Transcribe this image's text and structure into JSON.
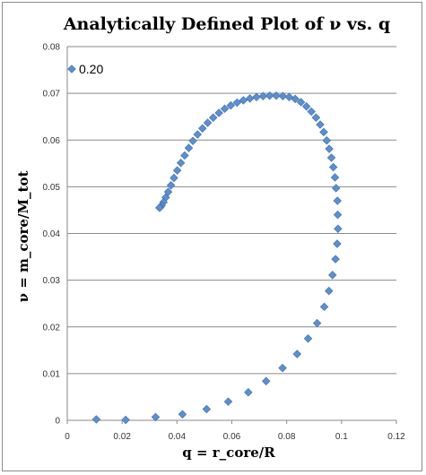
{
  "chart_data": {
    "type": "scatter",
    "title": "Analytically Defined Plot of  ν vs. q",
    "xlabel": "q = r_core/R",
    "ylabel": "ν = m_core/M_tot",
    "xlim": [
      0,
      0.12
    ],
    "ylim": [
      0,
      0.08
    ],
    "xticks": [
      "0",
      "0.02",
      "0.04",
      "0.06",
      "0.08",
      "0.1",
      "0.12"
    ],
    "yticks": [
      "0",
      "0.01",
      "0.02",
      "0.03",
      "0.04",
      "0.05",
      "0.06",
      "0.07",
      "0.08"
    ],
    "grid": "horizontal",
    "legend_position": "top-left",
    "marker": "diamond",
    "color": "#5b8fd0",
    "series": [
      {
        "name": "0.20",
        "points": [
          [
            0.0106,
            0.0002
          ],
          [
            0.0213,
            0.0001
          ],
          [
            0.0322,
            0.0007
          ],
          [
            0.042,
            0.0013
          ],
          [
            0.0508,
            0.0024
          ],
          [
            0.0587,
            0.004
          ],
          [
            0.066,
            0.006
          ],
          [
            0.0725,
            0.0084
          ],
          [
            0.0785,
            0.0112
          ],
          [
            0.0838,
            0.0142
          ],
          [
            0.0878,
            0.0175
          ],
          [
            0.0911,
            0.0208
          ],
          [
            0.0937,
            0.0243
          ],
          [
            0.0954,
            0.0277
          ],
          [
            0.0967,
            0.0311
          ],
          [
            0.0978,
            0.0345
          ],
          [
            0.0984,
            0.0378
          ],
          [
            0.0987,
            0.041
          ],
          [
            0.0986,
            0.044
          ],
          [
            0.0985,
            0.047
          ],
          [
            0.098,
            0.0497
          ],
          [
            0.0976,
            0.052
          ],
          [
            0.097,
            0.0542
          ],
          [
            0.0963,
            0.0562
          ],
          [
            0.0955,
            0.0581
          ],
          [
            0.0946,
            0.0599
          ],
          [
            0.0935,
            0.0617
          ],
          [
            0.0922,
            0.0633
          ],
          [
            0.0907,
            0.0648
          ],
          [
            0.089,
            0.0661
          ],
          [
            0.0872,
            0.0672
          ],
          [
            0.0852,
            0.0681
          ],
          [
            0.0831,
            0.0688
          ],
          [
            0.0809,
            0.0692
          ],
          [
            0.0786,
            0.0694
          ],
          [
            0.0762,
            0.0695
          ],
          [
            0.0738,
            0.0695
          ],
          [
            0.0714,
            0.0694
          ],
          [
            0.069,
            0.0692
          ],
          [
            0.0666,
            0.0689
          ],
          [
            0.0642,
            0.0685
          ],
          [
            0.0619,
            0.068
          ],
          [
            0.0596,
            0.0674
          ],
          [
            0.0574,
            0.0667
          ],
          [
            0.0553,
            0.0658
          ],
          [
            0.0532,
            0.0648
          ],
          [
            0.0512,
            0.0637
          ],
          [
            0.0493,
            0.0625
          ],
          [
            0.0475,
            0.0612
          ],
          [
            0.0458,
            0.0598
          ],
          [
            0.0443,
            0.0583
          ],
          [
            0.0428,
            0.0567
          ],
          [
            0.0414,
            0.0551
          ],
          [
            0.0401,
            0.0535
          ],
          [
            0.0389,
            0.0519
          ],
          [
            0.0378,
            0.0503
          ],
          [
            0.0368,
            0.0489
          ],
          [
            0.0359,
            0.0477
          ],
          [
            0.0351,
            0.0467
          ],
          [
            0.0344,
            0.046
          ],
          [
            0.0339,
            0.0456
          ],
          [
            0.0336,
            0.0455
          ]
        ]
      }
    ]
  }
}
